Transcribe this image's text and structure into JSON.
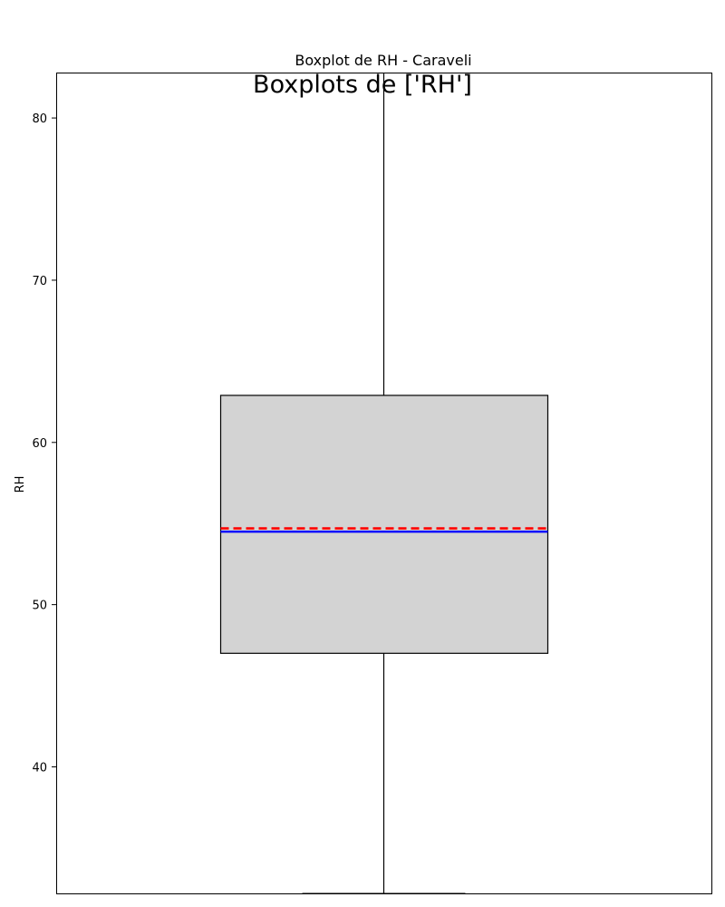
{
  "chart_data": {
    "type": "box",
    "suptitle": "Boxplots de ['RH']",
    "title": "Boxplot de RH - Caraveli",
    "xlabel": "",
    "ylabel": "RH",
    "ylim": [
      32.2,
      82.8
    ],
    "yticks": [
      40,
      50,
      60,
      70,
      80
    ],
    "grid": false,
    "series": [
      {
        "q1": 47.0,
        "median": 54.5,
        "mean": 54.7,
        "q3": 62.9,
        "whisker_low": 32.2,
        "whisker_high": 82.8
      }
    ],
    "colors": {
      "box_fill": "#d3d3d3",
      "box_edge": "#000000",
      "median": "#0000ff",
      "mean": "#ff0000"
    }
  }
}
